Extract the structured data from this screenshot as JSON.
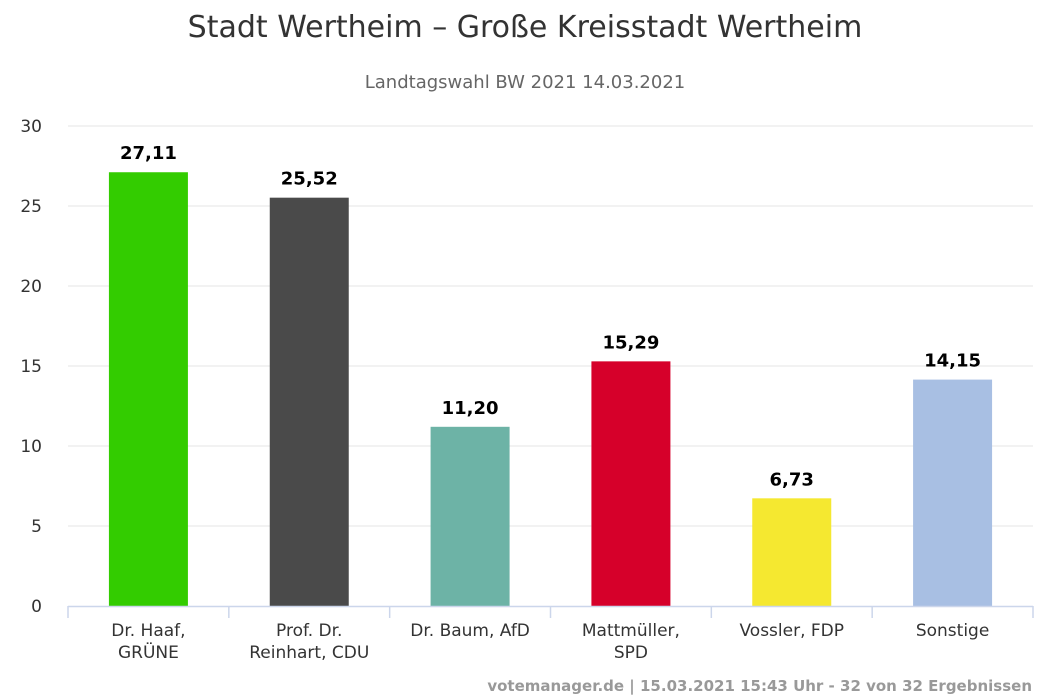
{
  "chart_data": {
    "type": "bar",
    "title": "Stadt Wertheim – Große Kreisstadt Wertheim",
    "subtitle": "Landtagswahl BW 2021 14.03.2021",
    "categories": [
      "Dr. Haaf,\nGRÜNE",
      "Prof. Dr.\nReinhart, CDU",
      "Dr. Baum, AfD",
      "Mattmüller,\nSPD",
      "Vossler, FDP",
      "Sonstige"
    ],
    "values": [
      27.11,
      25.52,
      11.2,
      15.29,
      6.73,
      14.15
    ],
    "value_labels": [
      "27,11",
      "25,52",
      "11,20",
      "15,29",
      "6,73",
      "14,15"
    ],
    "colors": [
      "#33cc00",
      "#4a4a4a",
      "#6db3a6",
      "#d6002a",
      "#f5e830",
      "#a8bfe3"
    ],
    "ylim": [
      0,
      30
    ],
    "yticks": [
      0,
      5,
      10,
      15,
      20,
      25,
      30
    ],
    "grid": true,
    "legend": "none"
  },
  "credits": "votemanager.de | 15.03.2021 15:43 Uhr - 32 von 32 Ergebnissen"
}
